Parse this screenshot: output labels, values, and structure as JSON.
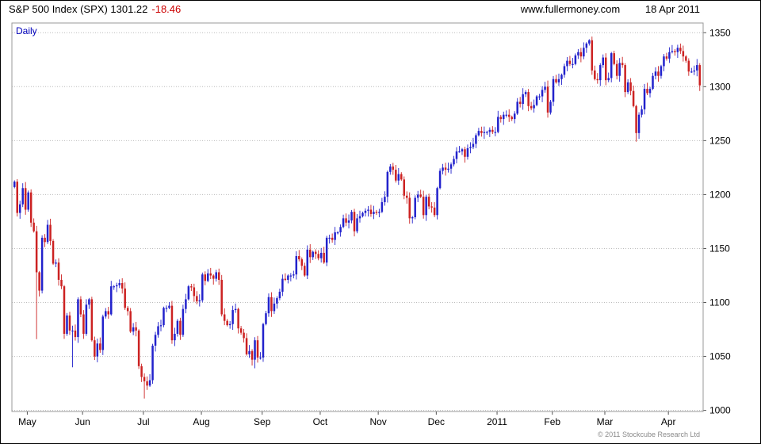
{
  "header": {
    "title": "S&P 500 Index (SPX) 1301.22",
    "change": "-18.46",
    "website": "www.fullermoney.com",
    "date": "18 Apr 2011"
  },
  "chart_label": "Daily",
  "footer": {
    "copyright": "© 2011 Stockcube Research Ltd"
  },
  "chart_data": {
    "type": "candlestick",
    "title": "S&P 500 Index (SPX) Daily",
    "xlabel": "",
    "ylabel": "",
    "ylim": [
      999,
      1359
    ],
    "y_ticks": [
      1000,
      1050,
      1100,
      1150,
      1200,
      1250,
      1300,
      1350
    ],
    "grid": "horizontal-dotted",
    "legend": "none",
    "up_color": "#2222cc",
    "down_color": "#cc2222",
    "month_ticks": [
      {
        "label": "May",
        "index": 5
      },
      {
        "label": "Jun",
        "index": 25
      },
      {
        "label": "Jul",
        "index": 47
      },
      {
        "label": "Aug",
        "index": 68
      },
      {
        "label": "Sep",
        "index": 90
      },
      {
        "label": "Oct",
        "index": 111
      },
      {
        "label": "Nov",
        "index": 132
      },
      {
        "label": "Dec",
        "index": 153
      },
      {
        "label": "2011",
        "index": 175
      },
      {
        "label": "Feb",
        "index": 195
      },
      {
        "label": "Mar",
        "index": 214
      },
      {
        "label": "Apr",
        "index": 237
      }
    ],
    "first_open": 1207,
    "closes": [
      1212,
      1183,
      1191,
      1206,
      1186,
      1202,
      1174,
      1166,
      1128,
      1111,
      1160,
      1156,
      1172,
      1157,
      1136,
      1137,
      1121,
      1115,
      1071,
      1088,
      1074,
      1074,
      1068,
      1103,
      1089,
      1071,
      1098,
      1103,
      1065,
      1050,
      1062,
      1056,
      1087,
      1092,
      1089,
      1115,
      1115,
      1116,
      1118,
      1113,
      1095,
      1092,
      1073,
      1077,
      1074,
      1041,
      1031,
      1027,
      1023,
      1028,
      1060,
      1070,
      1078,
      1079,
      1095,
      1095,
      1097,
      1065,
      1071,
      1083,
      1070,
      1094,
      1103,
      1115,
      1114,
      1106,
      1101,
      1102,
      1126,
      1120,
      1127,
      1125,
      1122,
      1128,
      1121,
      1089,
      1083,
      1079,
      1080,
      1093,
      1094,
      1076,
      1072,
      1067,
      1052,
      1055,
      1047,
      1065,
      1049,
      1049,
      1080,
      1090,
      1105,
      1092,
      1099,
      1104,
      1110,
      1122,
      1121,
      1125,
      1125,
      1126,
      1143,
      1140,
      1134,
      1125,
      1149,
      1142,
      1147,
      1145,
      1141,
      1146,
      1137,
      1160,
      1160,
      1158,
      1165,
      1165,
      1170,
      1178,
      1174,
      1176,
      1184,
      1166,
      1178,
      1180,
      1183,
      1185,
      1186,
      1182,
      1184,
      1183,
      1184,
      1193,
      1198,
      1221,
      1226,
      1223,
      1213,
      1219,
      1214,
      1199,
      1197,
      1178,
      1179,
      1197,
      1200,
      1198,
      1181,
      1198,
      1189,
      1188,
      1181,
      1206,
      1222,
      1225,
      1223,
      1224,
      1228,
      1233,
      1240,
      1240,
      1242,
      1235,
      1243,
      1244,
      1247,
      1255,
      1259,
      1257,
      1258,
      1258,
      1260,
      1258,
      1258,
      1272,
      1270,
      1274,
      1274,
      1272,
      1270,
      1275,
      1286,
      1284,
      1293,
      1295,
      1282,
      1280,
      1283,
      1291,
      1291,
      1297,
      1300,
      1276,
      1286,
      1307,
      1304,
      1307,
      1311,
      1319,
      1324,
      1321,
      1321,
      1329,
      1332,
      1328,
      1336,
      1340,
      1343,
      1315,
      1307,
      1306,
      1320,
      1327,
      1306,
      1308,
      1331,
      1321,
      1310,
      1322,
      1320,
      1295,
      1304,
      1296,
      1282,
      1257,
      1274,
      1279,
      1298,
      1294,
      1298,
      1310,
      1314,
      1310,
      1319,
      1328,
      1326,
      1332,
      1333,
      1332,
      1336,
      1333,
      1328,
      1324,
      1314,
      1314,
      1315,
      1320,
      1301.22
    ],
    "wick_overrides": {
      "8": {
        "low": 1066
      },
      "21": {
        "low": 1040
      },
      "47": {
        "low": 1011
      },
      "87": {
        "low": 1039
      },
      "143": {
        "low": 1173
      },
      "208": {
        "high": 1344
      },
      "225": {
        "low": 1249
      },
      "248": {
        "low": 1296
      }
    }
  }
}
